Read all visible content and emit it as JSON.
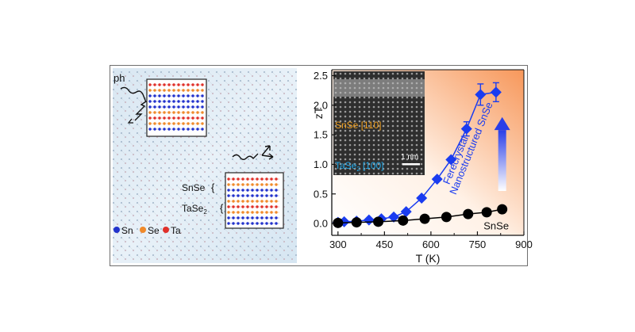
{
  "left_panel": {
    "phonon_label": "ph",
    "layer_labels": [
      "SnSe",
      "TaSe",
      "2"
    ],
    "legend": [
      {
        "name": "Sn",
        "color": "#2233cc"
      },
      {
        "name": "Se",
        "color": "#f08a2a"
      },
      {
        "name": "Ta",
        "color": "#e0302a"
      }
    ]
  },
  "inset": {
    "label_top": "SnSe [110]",
    "label_bottom_main": "TaSe",
    "label_bottom_sub": "2",
    "label_bottom_dir": "[100]",
    "scale_label": "1 nm",
    "label_top_color": "#f0a020",
    "label_bottom_color": "#22a8e8"
  },
  "chart_data": {
    "type": "scatter",
    "xlabel": "T (K)",
    "ylabel": "zT",
    "xlim": [
      280,
      900
    ],
    "ylim": [
      -0.2,
      2.6
    ],
    "xticks": [
      300,
      450,
      600,
      750,
      900
    ],
    "yticks": [
      0.0,
      0.5,
      1.0,
      1.5,
      2.0,
      2.5
    ],
    "series": [
      {
        "name": "Ferecrystal Nanostructured SnSe",
        "legend_line1": "Ferecrystal",
        "legend_line2": "Nanostructured SnSe",
        "color": "#1a3cf0",
        "marker": "diamond",
        "x": [
          300,
          320,
          360,
          400,
          440,
          480,
          520,
          570,
          620,
          665,
          715,
          760,
          810
        ],
        "y": [
          0.02,
          0.03,
          0.04,
          0.06,
          0.08,
          0.11,
          0.2,
          0.43,
          0.75,
          1.08,
          1.6,
          2.18,
          2.22
        ],
        "err": [
          0,
          0,
          0,
          0,
          0,
          0,
          0,
          0,
          0,
          0,
          0.12,
          0.18,
          0.16
        ]
      },
      {
        "name": "SnSe",
        "label": "SnSe",
        "color": "#000000",
        "marker": "circle",
        "x": [
          300,
          360,
          430,
          510,
          580,
          650,
          720,
          780,
          830
        ],
        "y": [
          0.01,
          0.02,
          0.03,
          0.05,
          0.08,
          0.11,
          0.16,
          0.19,
          0.24
        ],
        "err": [
          0,
          0,
          0,
          0,
          0,
          0,
          0,
          0,
          0
        ]
      }
    ]
  }
}
